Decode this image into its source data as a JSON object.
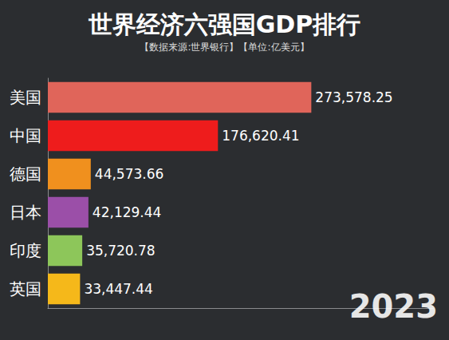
{
  "chart_data": {
    "type": "bar",
    "orientation": "horizontal",
    "title": "世界经济六强国GDP排行",
    "subtitle": "【数据来源:世界银行】【单位:亿美元】",
    "categories": [
      "美国",
      "中国",
      "德国",
      "日本",
      "印度",
      "英国"
    ],
    "values": [
      273578.25,
      176620.41,
      44573.66,
      42129.44,
      35720.78,
      33447.44
    ],
    "value_labels": [
      "273,578.25",
      "176,620.41",
      "44,573.66",
      "42,129.44",
      "35,720.78",
      "33,447.44"
    ],
    "colors": [
      "#e0655a",
      "#ee1c1c",
      "#f0901e",
      "#9b4fa8",
      "#8dc65a",
      "#f5b81a"
    ],
    "xlim": [
      0,
      400000
    ],
    "xticks": [
      0,
      100000,
      200000,
      300000,
      400000
    ],
    "grid": false,
    "data_labels": true,
    "tick_labels": "y",
    "annotations": [
      "2023"
    ]
  }
}
